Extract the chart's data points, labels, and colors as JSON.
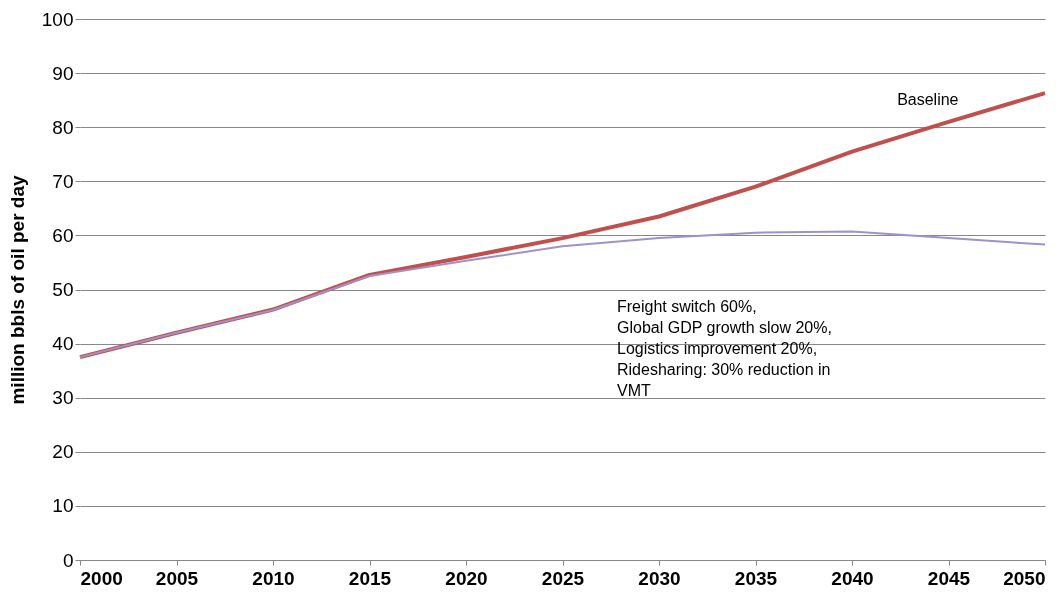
{
  "chart_data": {
    "type": "line",
    "ylabel": "million bbls of oil per day",
    "x": [
      2000,
      2005,
      2010,
      2015,
      2020,
      2025,
      2030,
      2035,
      2040,
      2045,
      2050
    ],
    "series": [
      {
        "name": "Baseline",
        "color": "#c0504d",
        "values": [
          37.5,
          42,
          46.3,
          52.7,
          56,
          59.5,
          63.5,
          69,
          75.5,
          81,
          86.3
        ]
      },
      {
        "color": "#a092c8",
        "values": [
          37.5,
          42,
          46.2,
          52.5,
          55.3,
          58,
          59.5,
          60.5,
          60.7,
          59.5,
          58.3
        ]
      }
    ],
    "annotations": [
      "Freight switch 60%,\nGlobal GDP growth slow 20%,\nLogistics improvement 20%,\nRidesharing: 30% reduction in\nVMT"
    ],
    "xlim": [
      2000,
      2050
    ],
    "xticks": [
      2000,
      2005,
      2010,
      2015,
      2020,
      2025,
      2030,
      2035,
      2040,
      2045,
      2050
    ],
    "ylim": [
      0,
      100
    ],
    "yticks": [
      0,
      10,
      20,
      30,
      40,
      50,
      60,
      70,
      80,
      90,
      100
    ],
    "grid": "y",
    "legend": false,
    "marker": "none",
    "line_style": "solid"
  }
}
